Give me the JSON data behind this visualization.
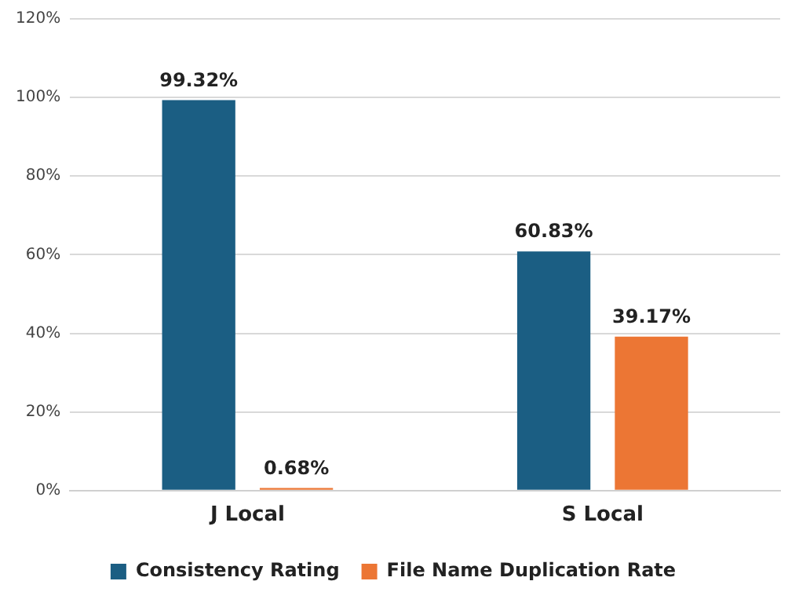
{
  "chart_data": {
    "type": "bar",
    "categories": [
      "J Local",
      "S Local"
    ],
    "series": [
      {
        "name": "Consistency Rating",
        "color": "#1b5e83",
        "values": [
          99.32,
          60.83
        ],
        "value_labels": [
          "99.32%",
          "60.83%"
        ]
      },
      {
        "name": "File Name Duplication Rate",
        "color": "#ec7634",
        "values": [
          0.68,
          39.17
        ],
        "value_labels": [
          "0.68%",
          "39.17%"
        ]
      }
    ],
    "ylim": [
      0,
      120
    ],
    "yticks": [
      {
        "value": 0,
        "label": "0%"
      },
      {
        "value": 20,
        "label": "20%"
      },
      {
        "value": 40,
        "label": "40%"
      },
      {
        "value": 60,
        "label": "60%"
      },
      {
        "value": 80,
        "label": "80%"
      },
      {
        "value": 100,
        "label": "100%"
      },
      {
        "value": 120,
        "label": "120%"
      }
    ],
    "grid": "y",
    "legend": "bottom"
  }
}
